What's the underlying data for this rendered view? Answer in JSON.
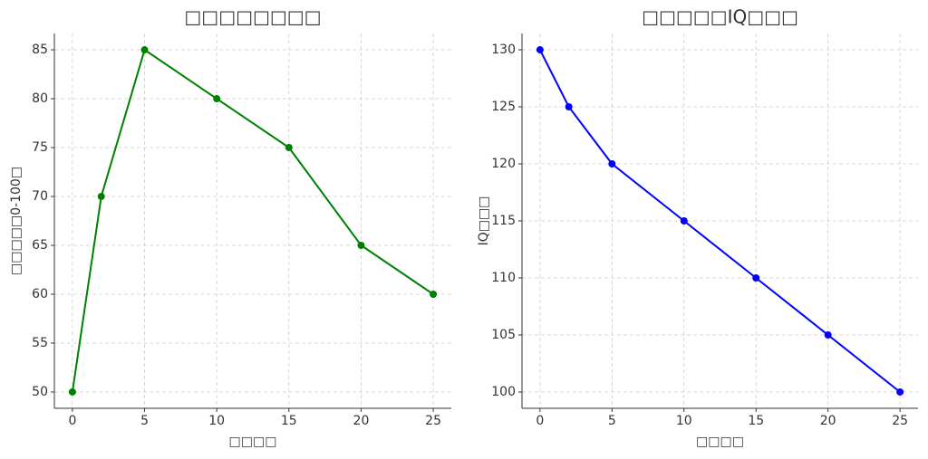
{
  "chart_data": [
    {
      "type": "line",
      "title": "□□□□□□□□",
      "x_label": "□□□□",
      "y_label": "□□□□□0-100□",
      "x": [
        0,
        2,
        5,
        10,
        15,
        20,
        25
      ],
      "series": [
        {
          "color": "#008000",
          "values": [
            50,
            70,
            85,
            80,
            75,
            65,
            60
          ]
        }
      ],
      "xlim": [
        -1.25,
        26.25
      ],
      "ylim": [
        48.33,
        86.67
      ],
      "xticks": [
        0,
        5,
        10,
        15,
        20,
        25
      ],
      "yticks": [
        50,
        55,
        60,
        65,
        70,
        75,
        80,
        85
      ],
      "grid": true
    },
    {
      "type": "line",
      "title": "□□□□□IQ□□□",
      "x_label": "□□□□",
      "y_label": "IQ□□□",
      "x": [
        0,
        2,
        5,
        10,
        15,
        20,
        25
      ],
      "series": [
        {
          "color": "#0000ff",
          "values": [
            130,
            125,
            120,
            115,
            110,
            105,
            100
          ]
        }
      ],
      "xlim": [
        -1.25,
        26.25
      ],
      "ylim": [
        98.57,
        131.43
      ],
      "xticks": [
        0,
        5,
        10,
        15,
        20,
        25
      ],
      "yticks": [
        100,
        105,
        110,
        115,
        120,
        125,
        130
      ],
      "grid": true
    }
  ]
}
